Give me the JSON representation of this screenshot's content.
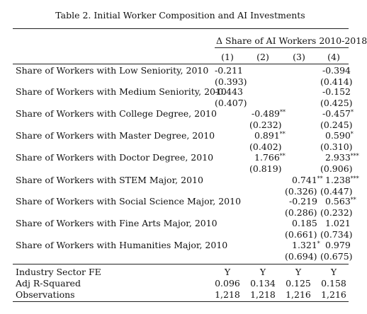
{
  "title": "Table 2. Initial Worker Composition and AI Investments",
  "dep_var_header": "Δ Share of AI Workers 2010-2018",
  "columns": [
    "(1)",
    "(2)",
    "(3)",
    "(4)"
  ],
  "rows": [
    {
      "label": "Share of Workers with Low Seniority, 2010",
      "coef": [
        "-0.211",
        "",
        "",
        "-0.394"
      ],
      "stars": [
        "",
        "",
        "",
        ""
      ],
      "se": [
        "(0.393)",
        "",
        "",
        "(0.414)"
      ]
    },
    {
      "label": "Share of Workers with Medium Seniority, 2010",
      "coef": [
        "-0.443",
        "",
        "",
        "-0.152"
      ],
      "stars": [
        "",
        "",
        "",
        ""
      ],
      "se": [
        "(0.407)",
        "",
        "",
        "(0.425)"
      ]
    },
    {
      "label": "Share of Workers with College Degree, 2010",
      "coef": [
        "",
        "-0.489",
        "",
        "-0.457"
      ],
      "stars": [
        "",
        "**",
        "",
        "*"
      ],
      "se": [
        "",
        "(0.232)",
        "",
        "(0.245)"
      ]
    },
    {
      "label": "Share of Workers with Master Degree, 2010",
      "coef": [
        "",
        "0.891",
        "",
        "0.590"
      ],
      "stars": [
        "",
        "**",
        "",
        "*"
      ],
      "se": [
        "",
        "(0.402)",
        "",
        "(0.310)"
      ]
    },
    {
      "label": "Share of Workers with Doctor Degree, 2010",
      "coef": [
        "",
        "1.766",
        "",
        "2.933"
      ],
      "stars": [
        "",
        "**",
        "",
        "***"
      ],
      "se": [
        "",
        "(0.819)",
        "",
        "(0.906)"
      ]
    },
    {
      "label": "Share of Workers with STEM Major, 2010",
      "coef": [
        "",
        "",
        "0.741",
        "1.238"
      ],
      "stars": [
        "",
        "",
        "**",
        "***"
      ],
      "se": [
        "",
        "",
        "(0.326)",
        "(0.447)"
      ]
    },
    {
      "label": "Share of Workers with Social Science Major, 2010",
      "coef": [
        "",
        "",
        "-0.219",
        "0.563"
      ],
      "stars": [
        "",
        "",
        "",
        "**"
      ],
      "se": [
        "",
        "",
        "(0.286)",
        "(0.232)"
      ]
    },
    {
      "label": "Share of Workers with Fine Arts Major, 2010",
      "coef": [
        "",
        "",
        "0.185",
        "1.021"
      ],
      "stars": [
        "",
        "",
        "",
        ""
      ],
      "se": [
        "",
        "",
        "(0.661)",
        "(0.734)"
      ]
    },
    {
      "label": "Share of Workers with Humanities Major, 2010",
      "coef": [
        "",
        "",
        "1.321",
        "0.979"
      ],
      "stars": [
        "",
        "",
        "*",
        ""
      ],
      "se": [
        "",
        "",
        "(0.694)",
        "(0.675)"
      ]
    }
  ],
  "footer": [
    {
      "label": "Industry Sector FE",
      "values": [
        "Y",
        "Y",
        "Y",
        "Y"
      ]
    },
    {
      "label": "Adj R-Squared",
      "values": [
        "0.096",
        "0.134",
        "0.125",
        "0.158"
      ]
    },
    {
      "label": "Observations",
      "values": [
        "1,218",
        "1,218",
        "1,216",
        "1,216"
      ]
    }
  ]
}
